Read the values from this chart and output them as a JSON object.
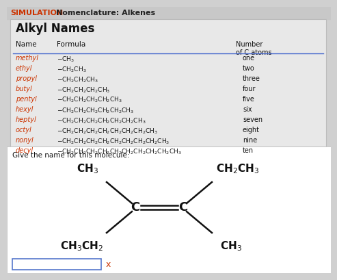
{
  "title_sim": "SIMULATION",
  "title_rest": "Nomenclature: Alkenes",
  "title_sim_color": "#cc3300",
  "title_rest_color": "#222222",
  "bg_color": "#d0d0d0",
  "table_bg": "#e8e8e8",
  "table_title": "Alkyl Names",
  "names": [
    "methyl",
    "ethyl",
    "propyl",
    "butyl",
    "pentyl",
    "hexyl",
    "heptyl",
    "octyl",
    "nonyl",
    "decyl"
  ],
  "formulas": [
    "$-$CH$_3$",
    "$-$CH$_2$CH$_3$",
    "$-$CH$_2$CH$_2$CH$_3$",
    "$-$CH$_2$CH$_2$CH$_2$CH$_3$",
    "$-$CH$_2$CH$_2$CH$_2$CH$_2$CH$_3$",
    "$-$CH$_2$CH$_2$CH$_2$CH$_2$CH$_2$CH$_3$",
    "$-$CH$_2$CH$_2$CH$_2$CH$_2$CH$_2$CH$_2$CH$_3$",
    "$-$CH$_2$CH$_2$CH$_2$CH$_2$CH$_2$CH$_2$CH$_2$CH$_3$",
    "$-$CH$_2$CH$_2$CH$_2$CH$_2$CH$_2$CH$_2$CH$_2$CH$_2$CH$_3$",
    "$-$CH$_2$CH$_2$CH$_2$CH$_2$CH$_2$CH$_2$CH$_2$CH$_2$CH$_2$CH$_3$"
  ],
  "counts": [
    "one",
    "two",
    "three",
    "four",
    "five",
    "six",
    "seven",
    "eight",
    "nine",
    "ten"
  ],
  "name_color": "#cc3300",
  "formula_color": "#111111",
  "count_color": "#111111",
  "prompt": "Give the name for this molecule:",
  "lower_bg": "#ffffff",
  "molecule_color": "#111111",
  "x_color": "#cc3300"
}
